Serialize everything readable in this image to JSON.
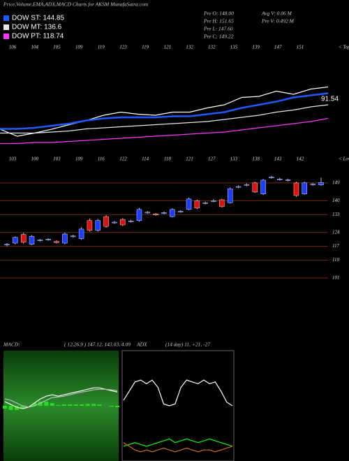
{
  "header": {
    "title": "Price,Volume,EMA,ADX,MACD Charts for AKSM MunafaSutra.com",
    "stats": [
      "Pre  O: 148.00",
      "Pre  H: 151.65",
      "Pre  L: 147.60",
      "Pre  C: 149.22",
      "Avg V: 0.06  M",
      "Pre  V: 0.492  M"
    ]
  },
  "chart_data": [
    {
      "type": "line",
      "annotation": "91.54",
      "ylim": [
        0,
        100
      ],
      "tops": [
        "106",
        "104",
        "105",
        "109",
        "119",
        "123",
        "119",
        "121",
        "132",
        "132",
        "135",
        "139",
        "147",
        "151"
      ],
      "tops_label": "< Tops",
      "series": [
        {
          "color": "#ffffff",
          "values": [
            16.7,
            10,
            13,
            16.7,
            21,
            25,
            30,
            33,
            31,
            30,
            33,
            33,
            37,
            40,
            47,
            48,
            53,
            50,
            55,
            57
          ]
        },
        {
          "name": "DOW ST: 144.85",
          "color": "#1e5bff",
          "values": [
            17,
            17,
            18,
            20,
            22,
            25,
            27,
            28,
            28,
            28,
            29,
            29,
            31,
            33,
            37,
            40,
            43,
            47,
            49,
            51
          ]
        },
        {
          "name": "DOW MT: 136.6",
          "color": "#e8e8e8",
          "values": [
            13,
            13,
            13,
            14,
            15,
            17,
            18,
            19,
            20,
            21,
            22,
            23,
            24,
            26,
            28,
            30,
            33,
            35,
            38,
            40
          ]
        },
        {
          "name": "DOW PT: 118.74",
          "color": "#ff33ff",
          "values": [
            3,
            3,
            4,
            4,
            5,
            6,
            7,
            8,
            9,
            10,
            11,
            12,
            13,
            14,
            16,
            18,
            20,
            22,
            24,
            27
          ]
        }
      ]
    },
    {
      "type": "candlestick",
      "ylim": [
        93.2,
        153.2
      ],
      "yticks": [
        149,
        140,
        133,
        124,
        117,
        110,
        101
      ],
      "lows": [
        "103",
        "100",
        "103",
        "109",
        "116",
        "122",
        "114",
        "118",
        "121",
        "127",
        "133",
        "138",
        "143",
        "142"
      ],
      "lows_label": "< Lows",
      "up_color": "#1e3cff",
      "down_color": "#e01010",
      "open": [
        117.6,
        118.6,
        123,
        118,
        119.8,
        120.2,
        119.5,
        118.6,
        121.8,
        120.8,
        130,
        125,
        132,
        128.8,
        130.6,
        129.4,
        130,
        133.8,
        133.4,
        133.6,
        132,
        134.3,
        135.6,
        140,
        138.6,
        139.6,
        140.5,
        139,
        146.8,
        147.8,
        149,
        143.4,
        151.6,
        150.6,
        150.2,
        149,
        143.4,
        148.1,
        148
      ],
      "high": [
        118.6,
        122,
        123.8,
        122.6,
        120.6,
        121,
        120,
        123.8,
        122.8,
        126.6,
        131,
        130.8,
        132.8,
        129.8,
        131.2,
        130.4,
        136.4,
        134.8,
        133.8,
        134.6,
        136.2,
        135.2,
        141.6,
        140.6,
        139.6,
        140.8,
        141,
        146.8,
        147.8,
        148.8,
        149.6,
        151,
        152.6,
        151.6,
        151.2,
        149.6,
        149.6,
        149,
        151.65
      ],
      "low": [
        117,
        118,
        118.4,
        117.6,
        119.4,
        119.8,
        118.4,
        118,
        121.4,
        120.2,
        124.4,
        124.4,
        126.4,
        128.4,
        127.2,
        129,
        129.4,
        133.4,
        132.4,
        133.2,
        131.6,
        134,
        135.2,
        135.8,
        138.2,
        139.2,
        136.6,
        138.6,
        146.4,
        147.4,
        144,
        143,
        151.2,
        150.2,
        149.8,
        142,
        143,
        147.6,
        147.6
      ],
      "close": [
        118,
        121.5,
        119,
        122,
        120.2,
        120.6,
        118.8,
        123.2,
        122.2,
        125.7,
        125,
        130,
        127,
        129.2,
        127.8,
        129.8,
        135.6,
        134.2,
        132.8,
        134,
        135.6,
        134.7,
        140.9,
        136.3,
        139,
        140,
        137,
        146,
        147.2,
        148.2,
        144.4,
        150.4,
        152,
        151,
        150.6,
        142.6,
        149,
        148.5,
        149.22
      ]
    },
    {
      "type": "macd",
      "title": "MACD:",
      "subtitle": "( 12,26,9 ) 147.12, 143.03, 4.09",
      "ylim": [
        -20,
        20
      ],
      "histogram_color": "#22dd22",
      "histogram": [
        -1,
        -1.5,
        -1.5,
        -1,
        0,
        1,
        1.5,
        1.5,
        1,
        0.3,
        0.5,
        0.5,
        0.5,
        0.5,
        0.7,
        0.7,
        0.5,
        0,
        -0.3,
        -0.5
      ],
      "series": [
        {
          "color": "#ffffff",
          "values": [
            1.5,
            0.5,
            -0.5,
            -1,
            -0.5,
            1,
            2.5,
            3.5,
            4,
            3.5,
            4,
            4.5,
            5,
            5.5,
            6,
            6.5,
            6.5,
            6,
            5.5,
            5
          ]
        },
        {
          "color": "#bbbbbb",
          "values": [
            2.5,
            2,
            1,
            0,
            -0.5,
            0,
            1,
            2,
            3,
            3.2,
            3.5,
            4,
            4.5,
            5,
            5.3,
            5.8,
            6,
            6,
            5.8,
            5.5
          ]
        }
      ]
    },
    {
      "type": "adx",
      "title": "ADX",
      "subtitle": "(14 day) 11, +21, -27",
      "ylim": [
        0,
        60
      ],
      "series": [
        {
          "color": "#ffffff",
          "values": [
            33,
            38,
            43,
            44,
            42,
            44,
            40,
            31,
            30,
            31,
            40,
            44,
            43,
            42,
            44,
            42,
            43,
            38,
            32,
            30
          ]
        },
        {
          "color": "#00ff00",
          "values": [
            8,
            9,
            10,
            9,
            8,
            9,
            10,
            11,
            12,
            10,
            11,
            12,
            11,
            10,
            11,
            12,
            11,
            10,
            9,
            8
          ]
        },
        {
          "color": "#d2691e",
          "values": [
            10,
            8,
            6,
            5,
            6,
            5,
            6,
            7,
            6,
            5,
            6,
            7,
            6,
            5,
            6,
            6,
            5,
            6,
            7,
            8
          ]
        }
      ]
    }
  ]
}
